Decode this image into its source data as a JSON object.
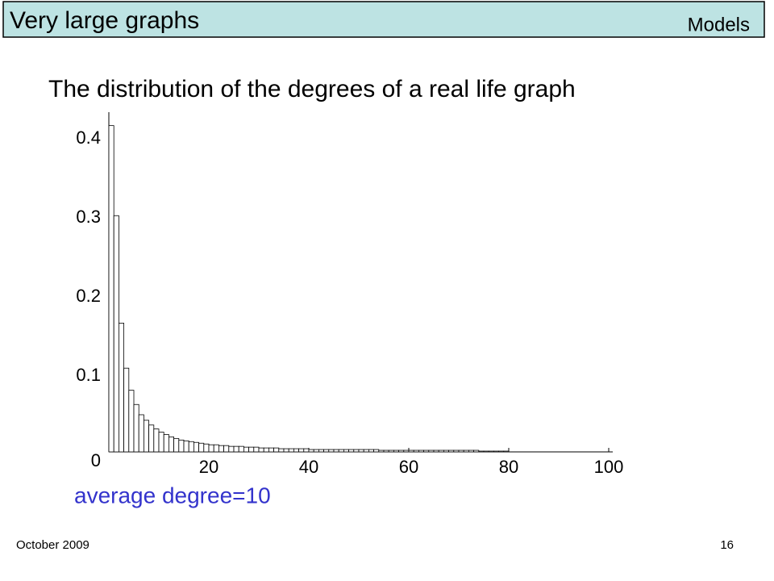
{
  "header": {
    "title": "Very large graphs",
    "section": "Models"
  },
  "chart_data": {
    "type": "histogram",
    "title": "The distribution of the degrees of a real life graph",
    "annotation": "average degree=10",
    "bins": [
      0,
      1,
      2,
      3,
      4,
      5,
      6,
      7,
      8,
      9,
      10,
      11,
      12,
      13,
      14,
      15,
      16,
      17,
      18,
      19,
      20,
      21,
      22,
      23,
      24,
      25,
      26,
      27,
      28,
      29,
      30,
      31,
      32,
      33,
      34,
      35,
      36,
      37,
      38,
      39,
      40,
      41,
      42,
      43,
      44,
      45,
      46,
      47,
      48,
      49,
      50,
      51,
      52,
      53,
      54,
      55,
      56,
      57,
      58,
      59,
      60,
      61,
      62,
      63,
      64,
      65,
      66,
      67,
      68,
      69,
      70,
      71,
      72,
      73,
      74,
      75,
      76,
      77,
      78,
      79,
      80,
      81,
      82,
      83,
      84,
      85,
      86,
      87,
      88,
      89,
      90,
      91,
      92,
      93,
      94,
      95,
      96,
      97,
      98,
      99,
      100
    ],
    "values": [
      0.413,
      0.299,
      0.163,
      0.106,
      0.078,
      0.06,
      0.047,
      0.04,
      0.034,
      0.029,
      0.025,
      0.022,
      0.019,
      0.017,
      0.015,
      0.014,
      0.013,
      0.012,
      0.011,
      0.01,
      0.009,
      0.009,
      0.008,
      0.008,
      0.007,
      0.007,
      0.007,
      0.006,
      0.006,
      0.006,
      0.005,
      0.005,
      0.005,
      0.005,
      0.004,
      0.004,
      0.004,
      0.004,
      0.004,
      0.004,
      0.003,
      0.003,
      0.003,
      0.003,
      0.003,
      0.003,
      0.003,
      0.003,
      0.003,
      0.003,
      0.003,
      0.003,
      0.003,
      0.003,
      0.002,
      0.002,
      0.002,
      0.002,
      0.002,
      0.002,
      0.002,
      0.002,
      0.002,
      0.002,
      0.002,
      0.002,
      0.002,
      0.002,
      0.002,
      0.002,
      0.002,
      0.002,
      0.002,
      0.002,
      0.001,
      0.001,
      0.001,
      0.001,
      0.001,
      0.001,
      0,
      0,
      0,
      0,
      0,
      0,
      0,
      0,
      0,
      0,
      0,
      0,
      0,
      0,
      0,
      0,
      0,
      0,
      0,
      0
    ],
    "color": "#ffffff",
    "xlim": [
      0,
      100
    ],
    "xticks": [
      20,
      40,
      60,
      80,
      100
    ],
    "ylim": [
      0,
      0.43
    ],
    "yticks": [
      0,
      0.1,
      0.2,
      0.3,
      0.4
    ]
  },
  "footer": {
    "date": "October 2009",
    "page": "16"
  }
}
